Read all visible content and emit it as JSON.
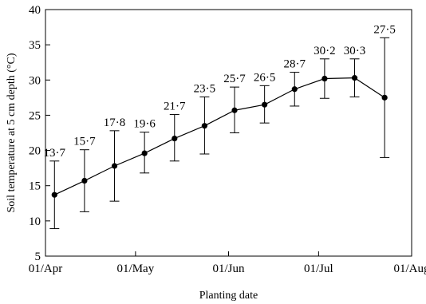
{
  "chart_data": {
    "type": "line",
    "xlabel": "Planting date",
    "ylabel": "Soil temperature at 5 cm depth (°C)",
    "xlim": [
      "2000-04-01",
      "2000-08-01"
    ],
    "ylim": [
      5,
      40
    ],
    "yticks": [
      5,
      10,
      15,
      20,
      25,
      30,
      35,
      40
    ],
    "xticks": [
      {
        "date": "2000-04-01",
        "label": "01/Apr"
      },
      {
        "date": "2000-05-01",
        "label": "01/May"
      },
      {
        "date": "2000-06-01",
        "label": "01/Jun"
      },
      {
        "date": "2000-07-01",
        "label": "01/Jul"
      },
      {
        "date": "2000-08-01",
        "label": "01/Aug"
      }
    ],
    "grid": false,
    "marker": "filled-circle",
    "points": [
      {
        "x": "2000-04-04",
        "y": 13.7,
        "err_low": 8.9,
        "err_high": 18.5,
        "label": "13·7"
      },
      {
        "x": "2000-04-14",
        "y": 15.7,
        "err_low": 11.3,
        "err_high": 20.1,
        "label": "15·7"
      },
      {
        "x": "2000-04-24",
        "y": 17.8,
        "err_low": 12.8,
        "err_high": 22.8,
        "label": "17·8"
      },
      {
        "x": "2000-05-04",
        "y": 19.6,
        "err_low": 16.8,
        "err_high": 22.6,
        "label": "19·6"
      },
      {
        "x": "2000-05-14",
        "y": 21.7,
        "err_low": 18.5,
        "err_high": 25.1,
        "label": "21·7"
      },
      {
        "x": "2000-05-24",
        "y": 23.5,
        "err_low": 19.5,
        "err_high": 27.6,
        "label": "23·5"
      },
      {
        "x": "2000-06-03",
        "y": 25.7,
        "err_low": 22.5,
        "err_high": 29.0,
        "label": "25·7"
      },
      {
        "x": "2000-06-13",
        "y": 26.5,
        "err_low": 23.9,
        "err_high": 29.2,
        "label": "26·5"
      },
      {
        "x": "2000-06-23",
        "y": 28.7,
        "err_low": 26.3,
        "err_high": 31.1,
        "label": "28·7"
      },
      {
        "x": "2000-07-03",
        "y": 30.2,
        "err_low": 27.4,
        "err_high": 33.0,
        "label": "30·2"
      },
      {
        "x": "2000-07-13",
        "y": 30.3,
        "err_low": 27.6,
        "err_high": 33.0,
        "label": "30·3"
      },
      {
        "x": "2000-07-23",
        "y": 27.5,
        "err_low": 19.0,
        "err_high": 36.0,
        "label": "27·5"
      }
    ]
  }
}
